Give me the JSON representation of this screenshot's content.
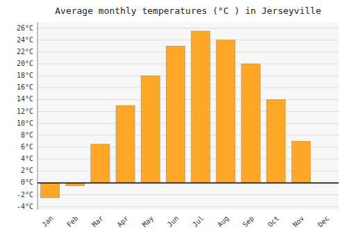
{
  "chart_data": {
    "type": "bar",
    "title": "Average monthly temperatures (°C ) in Jerseyville",
    "categories": [
      "Jan",
      "Feb",
      "Mar",
      "Apr",
      "May",
      "Jun",
      "Jul",
      "Aug",
      "Sep",
      "Oct",
      "Nov",
      "Dec"
    ],
    "values": [
      -2.5,
      -0.5,
      6.5,
      13.0,
      18.0,
      23.0,
      25.5,
      24.0,
      20.0,
      14.0,
      7.0,
      0.0
    ],
    "color": "#FFA726",
    "ylim": [
      -4.5,
      27
    ],
    "yticks": [
      {
        "value": -4,
        "label": "-4°C"
      },
      {
        "value": -2,
        "label": "-2°C"
      },
      {
        "value": 0,
        "label": "0°C"
      },
      {
        "value": 2,
        "label": "2°C"
      },
      {
        "value": 4,
        "label": "4°C"
      },
      {
        "value": 6,
        "label": "6°C"
      },
      {
        "value": 8,
        "label": "8°C"
      },
      {
        "value": 10,
        "label": "10°C"
      },
      {
        "value": 12,
        "label": "12°C"
      },
      {
        "value": 14,
        "label": "14°C"
      },
      {
        "value": 16,
        "label": "16°C"
      },
      {
        "value": 18,
        "label": "18°C"
      },
      {
        "value": 20,
        "label": "20°C"
      },
      {
        "value": 22,
        "label": "22°C"
      },
      {
        "value": 24,
        "label": "24°C"
      },
      {
        "value": 26,
        "label": "26°C"
      }
    ],
    "grid": true
  }
}
